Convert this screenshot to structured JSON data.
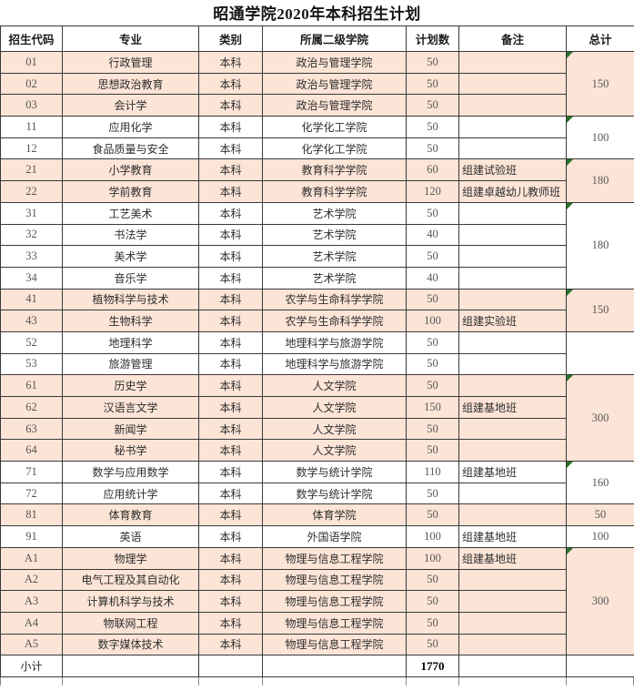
{
  "title": "昭通学院2020年本科招生计划",
  "colors": {
    "row_highlight": "#fce4d6",
    "row_plain": "#ffffff",
    "marker_green": "#267326",
    "border": "#000000"
  },
  "table": {
    "headers": [
      "招生代码",
      "专业",
      "类别",
      "所属二级学院",
      "计划数",
      "备注",
      "总计"
    ],
    "rows": [
      {
        "code": "01",
        "major": "行政管理",
        "category": "本科",
        "college": "政治与管理学院",
        "plan": "50",
        "remark": ""
      },
      {
        "code": "02",
        "major": "思想政治教育",
        "category": "本科",
        "college": "政治与管理学院",
        "plan": "50",
        "remark": ""
      },
      {
        "code": "03",
        "major": "会计学",
        "category": "本科",
        "college": "政治与管理学院",
        "plan": "50",
        "remark": ""
      },
      {
        "code": "11",
        "major": "应用化学",
        "category": "本科",
        "college": "化学化工学院",
        "plan": "50",
        "remark": ""
      },
      {
        "code": "12",
        "major": "食品质量与安全",
        "category": "本科",
        "college": "化学化工学院",
        "plan": "50",
        "remark": ""
      },
      {
        "code": "21",
        "major": "小学教育",
        "category": "本科",
        "college": "教育科学学院",
        "plan": "60",
        "remark": "组建试验班"
      },
      {
        "code": "22",
        "major": "学前教育",
        "category": "本科",
        "college": "教育科学学院",
        "plan": "120",
        "remark": "组建卓越幼儿教师班"
      },
      {
        "code": "31",
        "major": "工艺美术",
        "category": "本科",
        "college": "艺术学院",
        "plan": "50",
        "remark": ""
      },
      {
        "code": "32",
        "major": "书法学",
        "category": "本科",
        "college": "艺术学院",
        "plan": "40",
        "remark": ""
      },
      {
        "code": "33",
        "major": "美术学",
        "category": "本科",
        "college": "艺术学院",
        "plan": "50",
        "remark": ""
      },
      {
        "code": "34",
        "major": "音乐学",
        "category": "本科",
        "college": "艺术学院",
        "plan": "40",
        "remark": ""
      },
      {
        "code": "41",
        "major": "植物科学与技术",
        "category": "本科",
        "college": "农学与生命科学学院",
        "plan": "50",
        "remark": ""
      },
      {
        "code": "43",
        "major": "生物科学",
        "category": "本科",
        "college": "农学与生命科学学院",
        "plan": "100",
        "remark": "组建实验班"
      },
      {
        "code": "52",
        "major": "地理科学",
        "category": "本科",
        "college": "地理科学与旅游学院",
        "plan": "50",
        "remark": ""
      },
      {
        "code": "53",
        "major": "旅游管理",
        "category": "本科",
        "college": "地理科学与旅游学院",
        "plan": "50",
        "remark": ""
      },
      {
        "code": "61",
        "major": "历史学",
        "category": "本科",
        "college": "人文学院",
        "plan": "50",
        "remark": ""
      },
      {
        "code": "62",
        "major": "汉语言文学",
        "category": "本科",
        "college": "人文学院",
        "plan": "150",
        "remark": "组建基地班"
      },
      {
        "code": "63",
        "major": "新闻学",
        "category": "本科",
        "college": "人文学院",
        "plan": "50",
        "remark": ""
      },
      {
        "code": "64",
        "major": "秘书学",
        "category": "本科",
        "college": "人文学院",
        "plan": "50",
        "remark": ""
      },
      {
        "code": "71",
        "major": "数学与应用数学",
        "category": "本科",
        "college": "数学与统计学院",
        "plan": "110",
        "remark": "组建基地班"
      },
      {
        "code": "72",
        "major": "应用统计学",
        "category": "本科",
        "college": "数学与统计学院",
        "plan": "50",
        "remark": ""
      },
      {
        "code": "81",
        "major": "体育教育",
        "category": "本科",
        "college": "体育学院",
        "plan": "50",
        "remark": ""
      },
      {
        "code": "91",
        "major": "英语",
        "category": "本科",
        "college": "外国语学院",
        "plan": "100",
        "remark": "组建基地班"
      },
      {
        "code": "A1",
        "major": "物理学",
        "category": "本科",
        "college": "物理与信息工程学院",
        "plan": "100",
        "remark": "组建基地班"
      },
      {
        "code": "A2",
        "major": "电气工程及其自动化",
        "category": "本科",
        "college": "物理与信息工程学院",
        "plan": "50",
        "remark": ""
      },
      {
        "code": "A3",
        "major": "计算机科学与技术",
        "category": "本科",
        "college": "物理与信息工程学院",
        "plan": "50",
        "remark": ""
      },
      {
        "code": "A4",
        "major": "物联网工程",
        "category": "本科",
        "college": "物理与信息工程学院",
        "plan": "50",
        "remark": ""
      },
      {
        "code": "A5",
        "major": "数字媒体技术",
        "category": "本科",
        "college": "物理与信息工程学院",
        "plan": "50",
        "remark": ""
      }
    ],
    "groups": [
      {
        "start": 0,
        "span": 3,
        "total": "150",
        "marker": true,
        "shaded": true
      },
      {
        "start": 3,
        "span": 2,
        "total": "100",
        "marker": true,
        "shaded": false
      },
      {
        "start": 5,
        "span": 2,
        "total": "180",
        "marker": true,
        "shaded": true
      },
      {
        "start": 7,
        "span": 4,
        "total": "180",
        "marker": true,
        "shaded": false
      },
      {
        "start": 11,
        "span": 2,
        "total": "150",
        "marker": true,
        "shaded": true
      },
      {
        "start": 13,
        "span": 2,
        "total": "",
        "marker": false,
        "shaded": false
      },
      {
        "start": 15,
        "span": 4,
        "total": "300",
        "marker": true,
        "shaded": true
      },
      {
        "start": 19,
        "span": 2,
        "total": "160",
        "marker": true,
        "shaded": false
      },
      {
        "start": 21,
        "span": 1,
        "total": "50",
        "marker": false,
        "shaded": true
      },
      {
        "start": 22,
        "span": 1,
        "total": "100",
        "marker": false,
        "shaded": false
      },
      {
        "start": 23,
        "span": 5,
        "total": "300",
        "marker": true,
        "shaded": true
      }
    ],
    "subtotal": {
      "label": "小计",
      "plan": "1770",
      "total": ""
    }
  }
}
